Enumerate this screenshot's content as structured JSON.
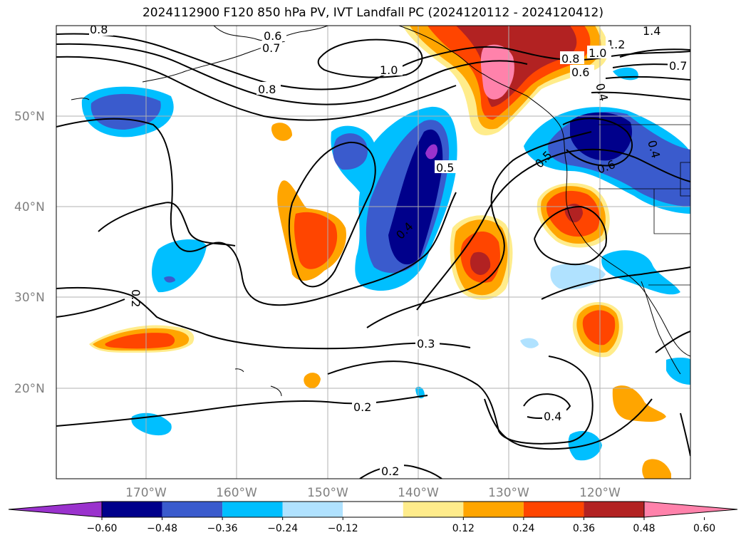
{
  "title": "2024112900 F120 850 hPa PV, IVT Landfall PC (2024120112 - 2024120412)",
  "latitude_labels": [
    "50°N",
    "40°N",
    "30°N",
    "20°N"
  ],
  "longitude_labels": [
    "170°W",
    "160°W",
    "150°W",
    "140°W",
    "130°W",
    "120°W"
  ],
  "contour_labels": [
    "0.8",
    "0.6",
    "0.7",
    "1.0",
    "0.8",
    "1.4",
    "1.2",
    "1.0",
    "0.8",
    "0.6",
    "0.7",
    "0.4",
    "0.5",
    "0.5",
    "0.6",
    "0.4",
    "0.4",
    "0.2",
    "0.3",
    "0.2",
    "0.4",
    "0.2"
  ],
  "colorbar": {
    "ticks": [
      "−0.60",
      "−0.48",
      "−0.36",
      "−0.24",
      "−0.12",
      "0.12",
      "0.24",
      "0.36",
      "0.48",
      "0.60"
    ],
    "colors": [
      "#9a32cd",
      "#00008b",
      "#3a5bcd",
      "#00bfff",
      "#b0e2ff",
      "#ffffff",
      "#ffec8b",
      "#ffa500",
      "#ff4500",
      "#b22222",
      "#ff82ab"
    ]
  }
}
